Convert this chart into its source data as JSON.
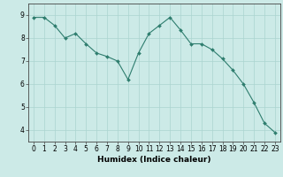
{
  "x": [
    0,
    1,
    2,
    3,
    4,
    5,
    6,
    7,
    8,
    9,
    10,
    11,
    12,
    13,
    14,
    15,
    16,
    17,
    18,
    19,
    20,
    21,
    22,
    23
  ],
  "y": [
    8.9,
    8.9,
    8.55,
    8.0,
    8.2,
    7.75,
    7.35,
    7.2,
    7.0,
    6.2,
    7.35,
    8.2,
    8.55,
    8.9,
    8.35,
    7.75,
    7.75,
    7.5,
    7.1,
    6.6,
    6.0,
    5.2,
    4.3,
    3.9
  ],
  "line_color": "#2e7d6e",
  "marker": "D",
  "marker_size": 2.0,
  "bg_color": "#cceae7",
  "grid_color": "#aad4cf",
  "xlabel": "Humidex (Indice chaleur)",
  "ylim": [
    3.5,
    9.5
  ],
  "xlim": [
    -0.5,
    23.5
  ],
  "yticks": [
    4,
    5,
    6,
    7,
    8,
    9
  ],
  "xticks": [
    0,
    1,
    2,
    3,
    4,
    5,
    6,
    7,
    8,
    9,
    10,
    11,
    12,
    13,
    14,
    15,
    16,
    17,
    18,
    19,
    20,
    21,
    22,
    23
  ],
  "xlabel_fontsize": 6.5,
  "tick_fontsize": 5.5,
  "axis_color": "#444444",
  "linewidth": 0.8
}
